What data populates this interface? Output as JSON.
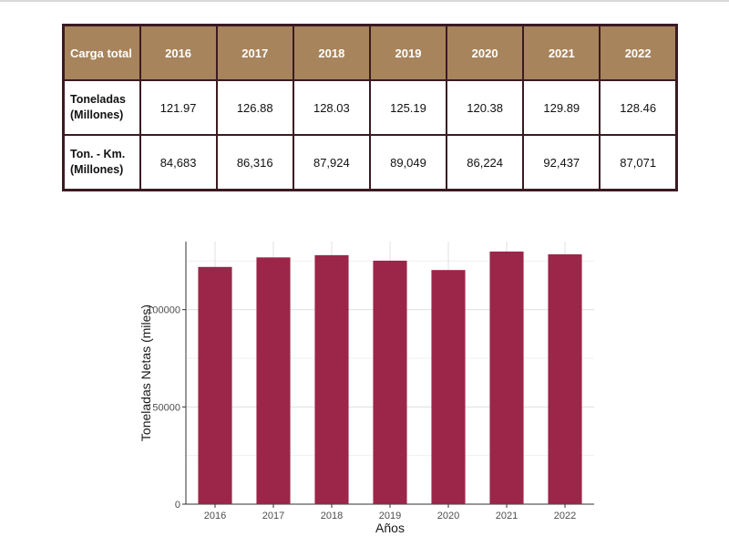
{
  "table": {
    "header_label": "Carga total",
    "years": [
      "2016",
      "2017",
      "2018",
      "2019",
      "2020",
      "2021",
      "2022"
    ],
    "rows": [
      {
        "label_line1": "Toneladas",
        "label_line2": "(Millones)",
        "values": [
          "121.97",
          "126.88",
          "128.03",
          "125.19",
          "120.38",
          "129.89",
          "128.46"
        ]
      },
      {
        "label_line1": "Ton. - Km.",
        "label_line2": "(Millones)",
        "values": [
          "84,683",
          "86,316",
          "87,924",
          "89,049",
          "86,224",
          "92,437",
          "87,071"
        ]
      }
    ]
  },
  "chart_data": {
    "type": "bar",
    "categories": [
      "2016",
      "2017",
      "2018",
      "2019",
      "2020",
      "2021",
      "2022"
    ],
    "values": [
      121970,
      126880,
      128030,
      125190,
      120380,
      129890,
      128460
    ],
    "title": "",
    "xlabel": "Años",
    "ylabel": "Toneladas Netas (miles)",
    "ylim": [
      0,
      135000
    ],
    "yticks": [
      0,
      50000,
      100000
    ],
    "ytick_labels": [
      "0",
      "50000",
      "100000"
    ],
    "grid": true,
    "bar_color": "#9b2649",
    "grid_color": "#e0e0e0"
  }
}
